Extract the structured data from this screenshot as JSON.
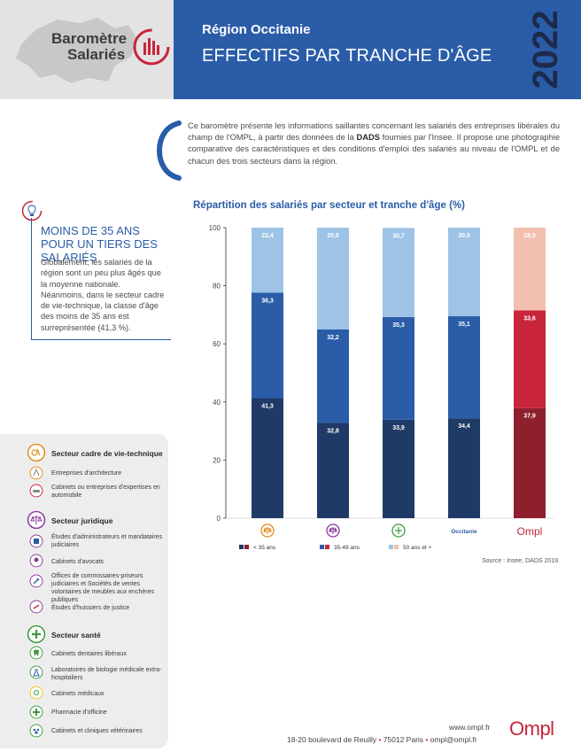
{
  "header": {
    "logo_line1": "Baromètre",
    "logo_line2": "Salariés",
    "region": "Région Occitanie",
    "title": "EFFECTIFS PAR TRANCHE D'ÂGE",
    "year": "2022"
  },
  "intro": {
    "part1": "Ce baromètre présente les informations saillantes concernant les salariés des entreprises libérales du champ de l'OMPL, à partir des données de la ",
    "bold": "DADS",
    "part2": " fournies par l'Insee. Il propose une photographie comparative des caractéristiques et des conditions d'emploi des salariés au niveau de l'OMPL et de chacun des trois secteurs dans la région."
  },
  "note": {
    "title": "MOINS DE 35 ANS POUR UN TIERS DES SALARIÉS",
    "text": "Globalement, les salariés de la région sont un peu plus âgés que la moyenne nationale. Néanmoins, dans le secteur cadre de vie-technique, la classe d'âge des moins de 35 ans est surreprésentée (41,3 %)."
  },
  "chart_data": {
    "type": "bar",
    "stacked": true,
    "title": "Répartition des salariés par secteur et tranche d'âge (%)",
    "categories": [
      "",
      "",
      "",
      "Occitanie",
      "Ompl"
    ],
    "category_icons": [
      "cadre-de-vie-technique-icon",
      "juridique-icon",
      "sante-icon",
      "",
      ""
    ],
    "series": [
      {
        "name": "< 35 ans",
        "values": [
          41.3,
          32.8,
          33.9,
          34.4,
          37.9
        ],
        "labels": [
          "41,3",
          "32,8",
          "33,9",
          "34,4",
          "37,9"
        ]
      },
      {
        "name": "35-49 ans",
        "values": [
          36.3,
          32.2,
          35.3,
          35.1,
          33.6
        ],
        "labels": [
          "36,3",
          "32,2",
          "35,3",
          "35,1",
          "33,6"
        ]
      },
      {
        "name": "50 ans et +",
        "values": [
          22.4,
          35.0,
          30.7,
          30.5,
          28.5
        ],
        "labels": [
          "22,4",
          "35,0",
          "30,7",
          "30,5",
          "28,5"
        ]
      }
    ],
    "ylim": [
      0,
      100
    ],
    "yticks": [
      "0",
      "20",
      "40",
      "60",
      "80",
      "100"
    ],
    "colors": {
      "default": [
        "#1f3a66",
        "#2a5ca8",
        "#9ec3e6"
      ],
      "ompl": [
        "#8e1f2c",
        "#c8253a",
        "#f2bfae"
      ]
    },
    "source": "Source : Insee, DADS 2019."
  },
  "legend": {
    "sections": [
      {
        "heading": "Secteur cadre de vie-technique",
        "items": [
          "Entreprises d'architecture",
          "Cabinets ou entreprises d'expertises en automobile"
        ]
      },
      {
        "heading": "Secteur juridique",
        "items": [
          "Études d'administrateurs et mandataires judiciaires",
          "Cabinets d'avocats",
          "Offices de commissaires-priseurs judiciaires et Sociétés de ventes volontaires de meubles aux enchères publiques",
          "Études d'huissiers de justice"
        ]
      },
      {
        "heading": "Secteur santé",
        "items": [
          "Cabinets dentaires libéraux",
          "Laboratoires de biologie médicale extra-hospitaliers",
          "Cabinets médicaux",
          "Pharmacie d'officine",
          "Cabinets et cliniques vétérinaires"
        ]
      }
    ]
  },
  "footer": {
    "website": "www.ompl.fr",
    "address": "18-20 boulevard de Reuilly",
    "city": "75012 Paris",
    "email": "ompl@ompl.fr",
    "logo": "Ompl"
  }
}
